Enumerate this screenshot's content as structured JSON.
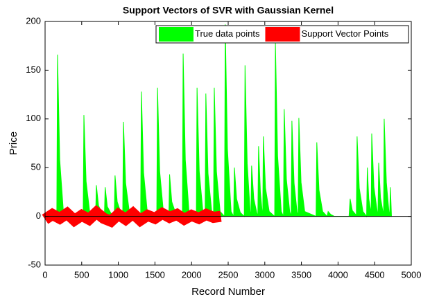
{
  "chart_data": {
    "type": "area",
    "title": "Support Vectors of SVR with Gaussian Kernel",
    "xlabel": "Record Number",
    "ylabel": "Price",
    "xlim": [
      0,
      5000
    ],
    "ylim": [
      -50,
      200
    ],
    "xticks": [
      0,
      500,
      1000,
      1500,
      2000,
      2500,
      3000,
      3500,
      4000,
      4500,
      5000
    ],
    "yticks": [
      -50,
      0,
      50,
      100,
      150,
      200
    ],
    "legend": "upper right",
    "series": [
      {
        "name": "True data points",
        "color": "#00ff00",
        "x": [
          160,
          170,
          200,
          250,
          520,
          530,
          560,
          610,
          690,
          700,
          730,
          780,
          810,
          820,
          850,
          900,
          945,
          955,
          985,
          1035,
          1060,
          1070,
          1100,
          1150,
          1305,
          1315,
          1345,
          1395,
          1525,
          1535,
          1565,
          1615,
          1690,
          1700,
          1730,
          1780,
          1875,
          1885,
          1915,
          1965,
          2065,
          2075,
          2105,
          2155,
          2185,
          2195,
          2225,
          2275,
          2300,
          2310,
          2340,
          2390,
          2450,
          2460,
          2490,
          2540,
          2575,
          2585,
          2615,
          2665,
          2720,
          2730,
          2760,
          2800,
          2810,
          2820,
          2850,
          2890,
          2905,
          2915,
          2940,
          2965,
          2972,
          2980,
          3010,
          3060,
          3135,
          3145,
          3175,
          3225,
          3255,
          3265,
          3295,
          3340,
          3360,
          3370,
          3400,
          3440,
          3455,
          3465,
          3495,
          3545,
          3700,
          3710,
          3740,
          3790,
          3850,
          3865,
          3900,
          3950,
          4150,
          4165,
          4195,
          4240,
          4250,
          4260,
          4290,
          4340,
          4390,
          4400,
          4420,
          4450,
          4452,
          4460,
          4490,
          4535,
          4545,
          4555,
          4580,
          4615,
          4622,
          4630,
          4660,
          4695,
          4705,
          4715,
          4725,
          4730
        ],
        "values": [
          0,
          166,
          58,
          5,
          0,
          104,
          36,
          4,
          0,
          32,
          11,
          3,
          0,
          30,
          10,
          3,
          0,
          42,
          15,
          4,
          0,
          97,
          34,
          5,
          0,
          128,
          45,
          5,
          0,
          132,
          46,
          5,
          0,
          43,
          15,
          4,
          0,
          167,
          58,
          5,
          0,
          132,
          46,
          5,
          0,
          126,
          44,
          5,
          0,
          132,
          46,
          5,
          0,
          197,
          69,
          5,
          0,
          50,
          18,
          4,
          0,
          155,
          54,
          5,
          0,
          52,
          18,
          4,
          0,
          72,
          25,
          4,
          0,
          82,
          29,
          5,
          0,
          178,
          62,
          5,
          0,
          110,
          38,
          5,
          0,
          98,
          34,
          5,
          0,
          101,
          35,
          5,
          0,
          76,
          27,
          5,
          0,
          5,
          2,
          0,
          0,
          18,
          6,
          2,
          0,
          82,
          29,
          5,
          0,
          50,
          18,
          4,
          0,
          85,
          30,
          5,
          0,
          55,
          19,
          4,
          0,
          100,
          35,
          5,
          0,
          30,
          10,
          0
        ]
      },
      {
        "name": "Support Vector Points",
        "color": "#ff0000",
        "x": [
          0,
          100,
          200,
          300,
          400,
          500,
          600,
          700,
          800,
          900,
          1000,
          1100,
          1200,
          1300,
          1400,
          1500,
          1600,
          1700,
          1800,
          1900,
          2000,
          2100,
          2200,
          2300,
          2400
        ],
        "values": [
          -3,
          2,
          -2,
          3,
          -4,
          1,
          -3,
          4,
          -2,
          -5,
          2,
          -3,
          3,
          -4,
          1,
          -2,
          3,
          -1,
          2,
          -3,
          1,
          -2,
          2,
          -1,
          0
        ]
      }
    ]
  }
}
